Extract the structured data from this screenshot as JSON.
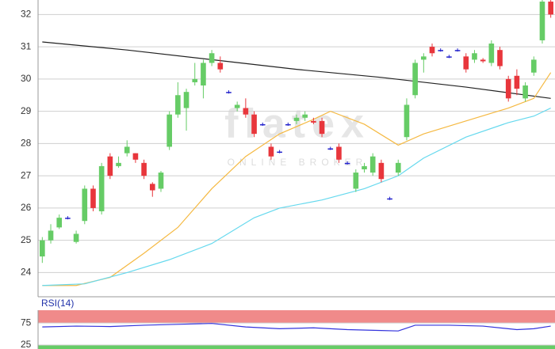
{
  "chart_data": [
    {
      "type": "candlestick",
      "x": [
        0,
        1,
        2,
        3,
        4,
        5,
        6,
        7,
        8,
        9,
        10,
        11,
        12,
        13,
        14,
        15,
        16,
        17,
        18,
        19,
        20,
        21,
        22,
        23,
        24,
        25,
        26,
        27,
        28,
        29,
        30,
        31,
        32,
        33,
        34,
        35,
        36,
        37,
        38,
        39,
        40,
        41,
        42,
        43,
        44,
        45,
        46,
        47,
        48,
        49,
        50,
        51,
        52,
        53,
        54,
        55,
        56,
        57,
        58,
        59,
        60
      ],
      "open": [
        24.5,
        25.0,
        25.4,
        25.7,
        24.95,
        25.6,
        26.6,
        25.9,
        27.6,
        27.3,
        27.7,
        27.7,
        27.4,
        26.75,
        26.6,
        27.9,
        28.9,
        29.1,
        29.9,
        29.8,
        30.5,
        30.5,
        29.6,
        29.1,
        29.1,
        28.9,
        28.6,
        27.9,
        27.75,
        28.6,
        28.7,
        28.8,
        28.7,
        28.7,
        27.85,
        27.9,
        27.4,
        26.6,
        27.2,
        27.1,
        27.4,
        26.3,
        27.1,
        28.2,
        29.5,
        30.6,
        31.0,
        30.9,
        30.7,
        30.9,
        30.7,
        30.6,
        30.6,
        30.5,
        30.9,
        30.0,
        30.1,
        29.4,
        30.2,
        31.2,
        32.4
      ],
      "high": [
        25.1,
        25.5,
        25.8,
        25.75,
        25.3,
        26.7,
        26.7,
        27.4,
        27.7,
        27.6,
        28.1,
        27.7,
        27.5,
        26.8,
        27.15,
        29.0,
        29.9,
        29.7,
        30.5,
        30.6,
        30.9,
        30.7,
        29.65,
        29.3,
        29.4,
        29.0,
        28.65,
        28.0,
        27.8,
        28.65,
        28.9,
        29.0,
        28.8,
        28.8,
        27.9,
        28.0,
        27.45,
        27.2,
        27.4,
        27.7,
        27.5,
        26.35,
        27.5,
        29.4,
        30.6,
        30.8,
        31.1,
        30.95,
        30.75,
        30.95,
        30.8,
        30.9,
        30.65,
        31.2,
        31.0,
        30.1,
        30.3,
        29.9,
        30.7,
        32.5,
        32.45
      ],
      "low": [
        24.3,
        24.9,
        25.35,
        25.65,
        24.9,
        25.5,
        25.9,
        25.8,
        26.9,
        27.25,
        27.6,
        27.4,
        26.9,
        26.35,
        26.5,
        27.8,
        28.8,
        28.4,
        29.8,
        29.4,
        30.4,
        30.2,
        29.55,
        29.0,
        28.8,
        28.2,
        28.55,
        27.5,
        27.7,
        28.55,
        28.6,
        28.7,
        28.6,
        28.2,
        27.8,
        27.4,
        27.35,
        26.5,
        27.1,
        27.0,
        26.8,
        26.25,
        27.0,
        28.1,
        29.4,
        30.2,
        30.7,
        30.85,
        30.65,
        30.85,
        30.2,
        30.5,
        30.5,
        30.4,
        30.3,
        29.3,
        29.5,
        29.3,
        30.1,
        31.1,
        31.9
      ],
      "close": [
        25.0,
        25.3,
        25.7,
        25.7,
        25.2,
        26.6,
        26.0,
        27.3,
        27.0,
        27.4,
        27.9,
        27.5,
        27.0,
        26.55,
        27.1,
        28.9,
        29.5,
        29.6,
        30.0,
        30.5,
        30.8,
        30.3,
        29.6,
        29.2,
        28.9,
        28.3,
        28.6,
        27.6,
        27.75,
        28.6,
        28.8,
        28.9,
        28.65,
        28.3,
        27.85,
        27.5,
        27.4,
        27.1,
        27.3,
        27.6,
        26.9,
        26.3,
        27.4,
        29.2,
        30.5,
        30.7,
        30.8,
        30.9,
        30.7,
        30.9,
        30.3,
        30.8,
        30.55,
        31.1,
        30.4,
        29.4,
        29.7,
        29.8,
        30.6,
        32.4,
        32.0
      ],
      "rising_color": "#66cc66",
      "falling_color": "#e8363c",
      "unchanged_color": "#2222cc",
      "overlays": [
        {
          "color": "#222222",
          "x": [
            0,
            10,
            20,
            30,
            40,
            50,
            60
          ],
          "values": [
            31.15,
            30.9,
            30.6,
            30.3,
            30.05,
            29.75,
            29.4
          ]
        },
        {
          "color": "#f5b942",
          "x": [
            0,
            4,
            8,
            12,
            16,
            20,
            24,
            28,
            32,
            34,
            38,
            42,
            45,
            50,
            55,
            58,
            60
          ],
          "values": [
            23.6,
            23.6,
            23.85,
            24.6,
            25.4,
            26.6,
            27.6,
            28.3,
            28.75,
            29.0,
            28.6,
            27.95,
            28.3,
            28.7,
            29.1,
            29.4,
            30.2
          ]
        },
        {
          "color": "#66d9ee",
          "x": [
            0,
            5,
            10,
            15,
            20,
            25,
            28,
            33,
            38,
            42,
            45,
            50,
            55,
            58,
            60
          ],
          "values": [
            23.6,
            23.65,
            24.0,
            24.4,
            24.9,
            25.7,
            26.0,
            26.25,
            26.6,
            27.0,
            27.55,
            28.2,
            28.65,
            28.85,
            29.1
          ]
        }
      ],
      "xlim": [
        -0.5,
        60.5
      ],
      "ylim": [
        23.25,
        32.45
      ],
      "yticks": [
        24,
        25,
        26,
        27,
        28,
        29,
        30,
        31,
        32
      ],
      "grid": true
    },
    {
      "type": "line",
      "title": "RSI(14)",
      "series": [
        {
          "color": "#3333dd",
          "x": [
            0,
            4,
            8,
            12,
            16,
            20,
            24,
            28,
            32,
            36,
            40,
            42,
            44,
            48,
            52,
            56,
            58,
            60
          ],
          "values": [
            66,
            68,
            67,
            70,
            72,
            74,
            66,
            62,
            64,
            60,
            58,
            57,
            70,
            70,
            68,
            60,
            62,
            68
          ]
        }
      ],
      "xlim": [
        -0.5,
        60.5
      ],
      "ylim": [
        16,
        104
      ],
      "yticks": [
        25,
        75
      ],
      "upper_band_color": "#f08a8a",
      "lower_band_color": "#66cc66"
    }
  ],
  "watermark": {
    "logo": "flatex",
    "text": "ONLINE BROKER"
  }
}
